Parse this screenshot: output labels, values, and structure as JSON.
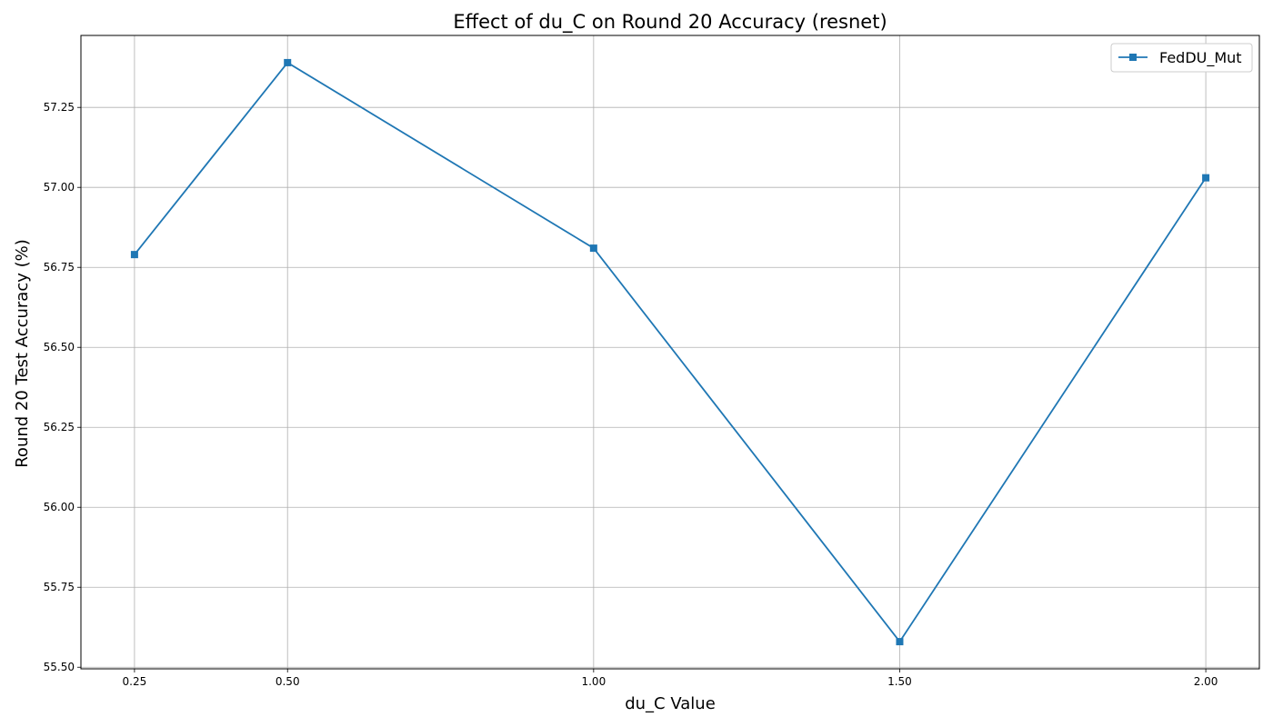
{
  "chart_data": {
    "type": "line",
    "title": "Effect of du_C on Round 20 Accuracy (resnet)",
    "xlabel": "du_C Value",
    "ylabel": "Round 20 Test Accuracy (%)",
    "x": [
      0.25,
      0.5,
      1.0,
      1.5,
      2.0
    ],
    "x_tick_labels": [
      "0.25",
      "0.50",
      "1.00",
      "1.50",
      "2.00"
    ],
    "y_ticks": [
      55.5,
      55.75,
      56.0,
      56.25,
      56.5,
      56.75,
      57.0,
      57.25
    ],
    "y_tick_labels": [
      "55.50",
      "55.75",
      "56.00",
      "56.25",
      "56.50",
      "56.75",
      "57.00",
      "57.25"
    ],
    "xlim": [
      0.1625,
      2.0875
    ],
    "ylim": [
      55.495,
      57.475
    ],
    "grid": true,
    "legend_position": "top-right",
    "series": [
      {
        "name": "FedDU_Mut",
        "values": [
          56.79,
          57.39,
          56.81,
          55.58,
          57.03
        ],
        "color": "#1f77b4",
        "marker": "square"
      }
    ]
  }
}
